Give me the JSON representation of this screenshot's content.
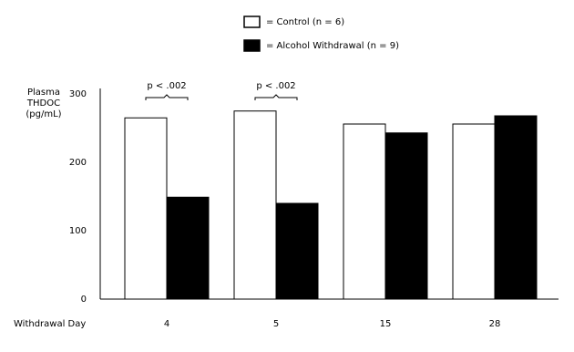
{
  "chart_data": {
    "type": "bar",
    "ylabel": [
      "Plasma",
      "THDOC",
      "(pg/mL)"
    ],
    "xlabel": "Withdrawal Day",
    "categories": [
      "4",
      "5",
      "15",
      "28"
    ],
    "series": [
      {
        "name": "= Control (n = 6)",
        "color": "#ffffff",
        "values": [
          265,
          275,
          256,
          256
        ]
      },
      {
        "name": "= Alcohol Withdrawal (n = 9)",
        "color": "#000000",
        "values": [
          149,
          140,
          243,
          268
        ]
      }
    ],
    "annotations": [
      "p < .002",
      "p < .002"
    ],
    "ylim": [
      0,
      300
    ],
    "yticks": [
      0,
      100,
      200,
      300
    ]
  }
}
